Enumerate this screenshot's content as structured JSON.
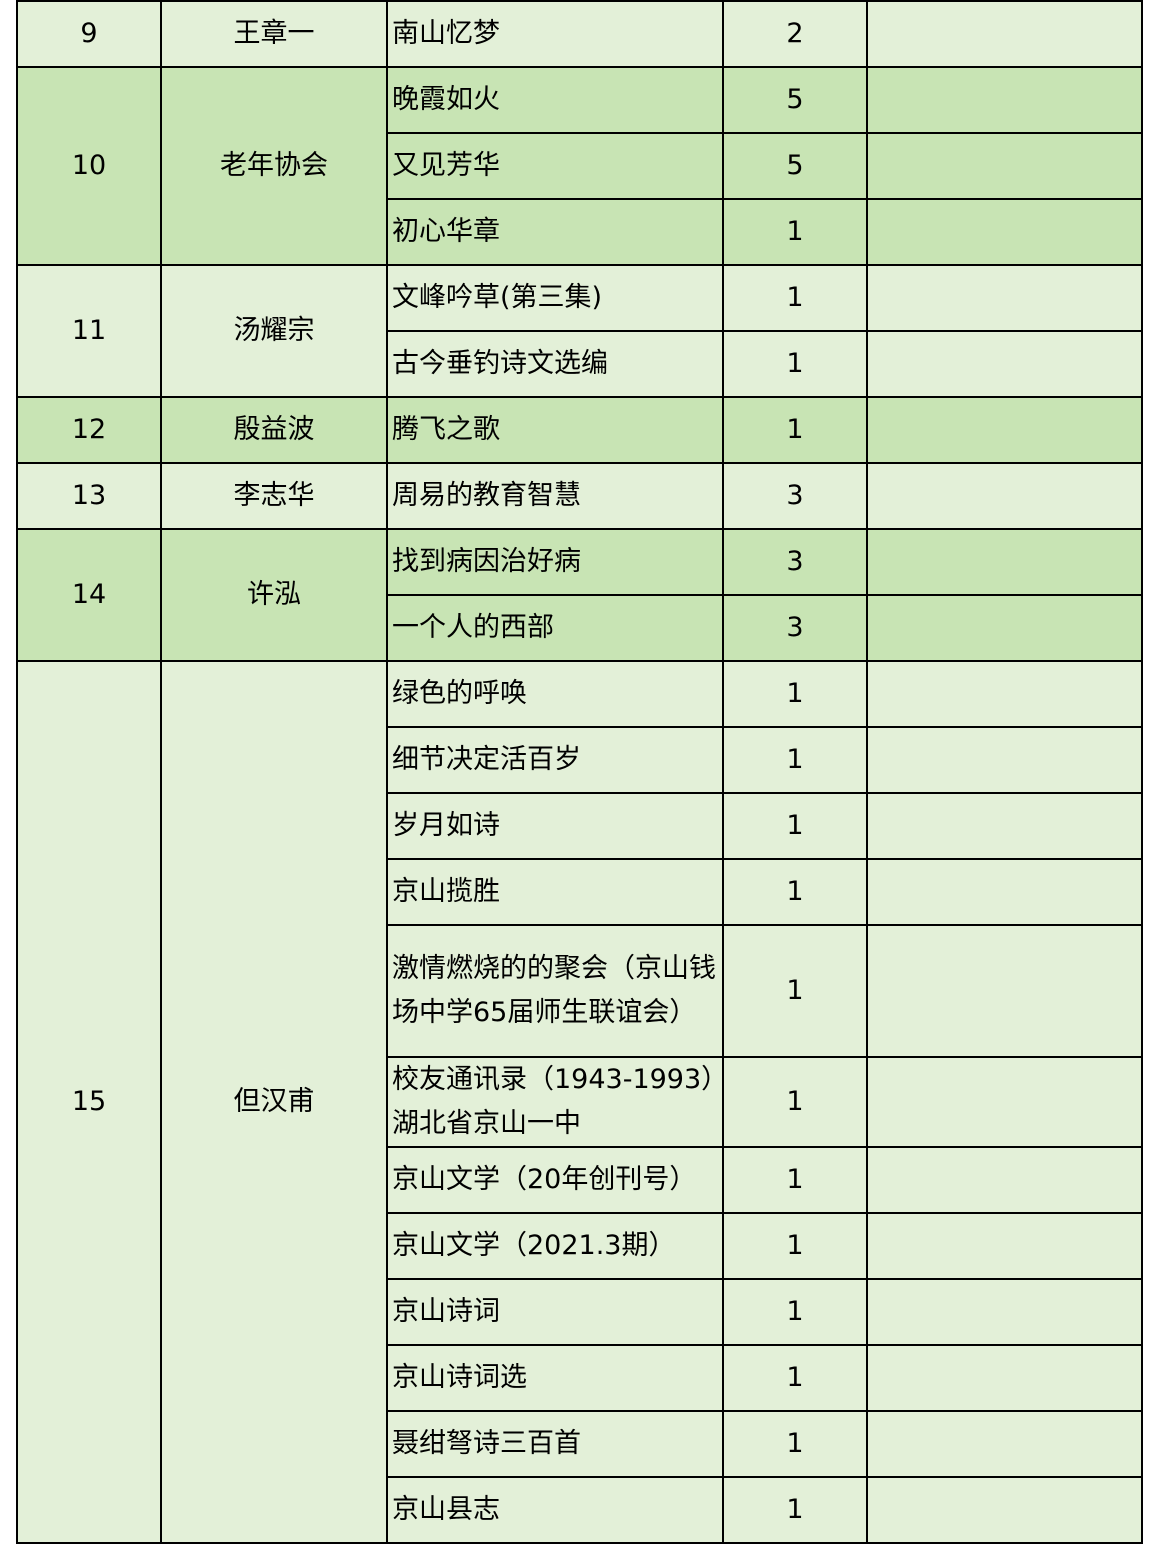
{
  "colors": {
    "light_row": "#e3f0d8",
    "dark_row": "#c8e4b4",
    "border": "#000000"
  },
  "groups": [
    {
      "no": "9",
      "author": "王章一",
      "shade": "light",
      "books": [
        {
          "title": "南山忆梦",
          "qty": "2"
        }
      ]
    },
    {
      "no": "10",
      "author": "老年协会",
      "shade": "dark",
      "books": [
        {
          "title": "晚霞如火",
          "qty": "5"
        },
        {
          "title": "又见芳华",
          "qty": "5"
        },
        {
          "title": "初心华章",
          "qty": "1"
        }
      ]
    },
    {
      "no": "11",
      "author": "汤耀宗",
      "shade": "light",
      "books": [
        {
          "title": "文峰吟草(第三集)",
          "qty": "1"
        },
        {
          "title": "古今垂钓诗文选编",
          "qty": "1"
        }
      ]
    },
    {
      "no": "12",
      "author": "殷益波",
      "shade": "dark",
      "books": [
        {
          "title": "腾飞之歌",
          "qty": "1"
        }
      ]
    },
    {
      "no": "13",
      "author": "李志华",
      "shade": "light",
      "books": [
        {
          "title": "周易的教育智慧",
          "qty": "3"
        }
      ]
    },
    {
      "no": "14",
      "author": "许泓",
      "shade": "dark",
      "books": [
        {
          "title": "找到病因治好病",
          "qty": "3"
        },
        {
          "title": "一个人的西部",
          "qty": "3"
        }
      ]
    },
    {
      "no": "15",
      "author": "但汉甫",
      "shade": "light",
      "books": [
        {
          "title": "绿色的呼唤",
          "qty": "1"
        },
        {
          "title": "细节决定活百岁",
          "qty": "1"
        },
        {
          "title": "岁月如诗",
          "qty": "1"
        },
        {
          "title": "京山揽胜",
          "qty": "1"
        },
        {
          "title": "激情燃烧的的聚会（京山钱场中学65届师生联谊会）",
          "qty": "1"
        },
        {
          "title": "校友通讯录（1943-1993）湖北省京山一中",
          "qty": "1"
        },
        {
          "title": "京山文学（20年创刊号）",
          "qty": "1"
        },
        {
          "title": "京山文学（2021.3期）",
          "qty": "1"
        },
        {
          "title": "京山诗词",
          "qty": "1"
        },
        {
          "title": "京山诗词选",
          "qty": "1"
        },
        {
          "title": "聂绀弩诗三百首",
          "qty": "1"
        },
        {
          "title": "京山县志",
          "qty": "1"
        }
      ]
    }
  ]
}
